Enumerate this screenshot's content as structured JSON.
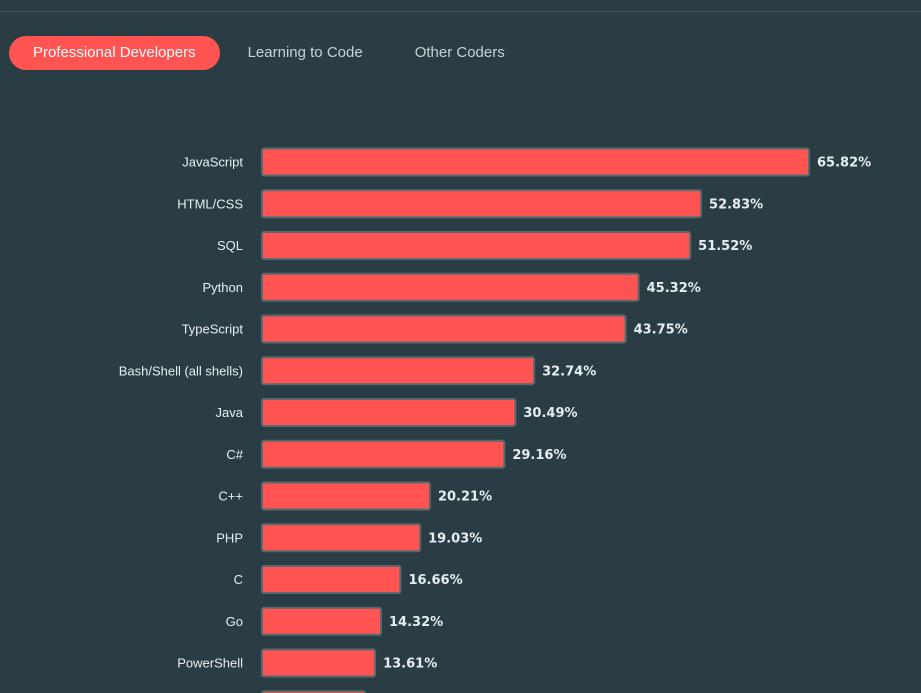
{
  "tabs": [
    {
      "label": "Professional Developers",
      "active": true
    },
    {
      "label": "Learning to Code",
      "active": false
    },
    {
      "label": "Other Coders",
      "active": false
    }
  ],
  "colors": {
    "background": "#2a3d44",
    "bar": "#ff5451",
    "bar_border": "#586a70",
    "text": "#e8eef0"
  },
  "chart_data": {
    "type": "bar",
    "orientation": "horizontal",
    "title": "",
    "xlabel": "",
    "ylabel": "",
    "xlim": [
      0,
      65.82
    ],
    "categories": [
      "JavaScript",
      "HTML/CSS",
      "SQL",
      "Python",
      "TypeScript",
      "Bash/Shell (all shells)",
      "Java",
      "C#",
      "C++",
      "PHP",
      "C",
      "Go",
      "PowerShell"
    ],
    "values": [
      65.82,
      52.83,
      51.52,
      45.32,
      43.75,
      32.74,
      30.49,
      29.16,
      20.21,
      19.03,
      16.66,
      14.32,
      13.61
    ],
    "value_labels": [
      "65.82%",
      "52.83%",
      "51.52%",
      "45.32%",
      "43.75%",
      "32.74%",
      "30.49%",
      "29.16%",
      "20.21%",
      "19.03%",
      "16.66%",
      "14.32%",
      "13.61%"
    ]
  }
}
